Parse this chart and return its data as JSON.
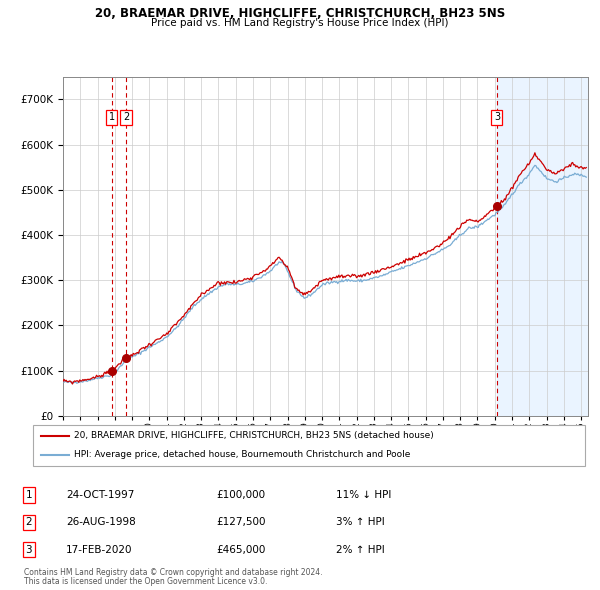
{
  "title": "20, BRAEMAR DRIVE, HIGHCLIFFE, CHRISTCHURCH, BH23 5NS",
  "subtitle": "Price paid vs. HM Land Registry's House Price Index (HPI)",
  "legend_line1": "20, BRAEMAR DRIVE, HIGHCLIFFE, CHRISTCHURCH, BH23 5NS (detached house)",
  "legend_line2": "HPI: Average price, detached house, Bournemouth Christchurch and Poole",
  "footer1": "Contains HM Land Registry data © Crown copyright and database right 2024.",
  "footer2": "This data is licensed under the Open Government Licence v3.0.",
  "transactions": [
    {
      "num": "1",
      "date": "24-OCT-1997",
      "price": "£100,000",
      "pct": "11% ↓ HPI",
      "x_year": 1997.81,
      "y_price": 100000
    },
    {
      "num": "2",
      "date": "26-AUG-1998",
      "price": "£127,500",
      "pct": "3% ↑ HPI",
      "x_year": 1998.65,
      "y_price": 127500
    },
    {
      "num": "3",
      "date": "17-FEB-2020",
      "price": "£465,000",
      "pct": "2% ↑ HPI",
      "x_year": 2020.13,
      "y_price": 465000
    }
  ],
  "hpi_color": "#7aadd4",
  "price_color": "#cc0000",
  "dot_color": "#aa0000",
  "vline_color": "#cc0000",
  "bg_shade_color": "#ddeeff",
  "grid_color": "#cccccc",
  "ylim": [
    0,
    750000
  ],
  "xlim_start": 1995.0,
  "xlim_end": 2025.4,
  "future_shade_start": 2020.13,
  "title_fontsize": 8.5,
  "subtitle_fontsize": 7.5,
  "tick_fontsize": 6.5,
  "ylabel_fontsize": 7.5,
  "legend_fontsize": 6.5,
  "table_fontsize": 7.5,
  "footer_fontsize": 5.5
}
